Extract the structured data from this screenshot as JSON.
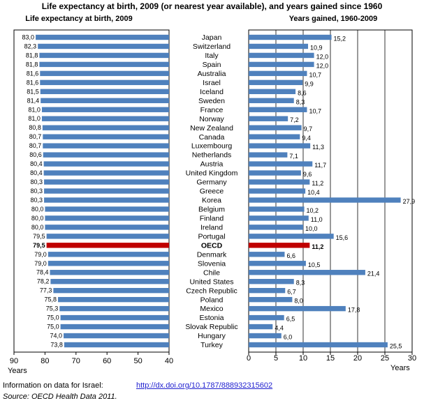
{
  "colors": {
    "bar": "#4f81bd",
    "highlight": "#c00000",
    "grid": "#000000"
  },
  "chart_data": {
    "type": "bar",
    "title": "Life expectancy at birth, 2009 (or nearest year available), and years gained since 1960",
    "categories": [
      "Japan",
      "Switzerland",
      "Italy",
      "Spain",
      "Australia",
      "Israel",
      "Iceland",
      "Sweden",
      "France",
      "Norway",
      "New Zealand",
      "Canada",
      "Luxembourg",
      "Netherlands",
      "Austria",
      "United Kingdom",
      "Germany",
      "Greece",
      "Korea",
      "Belgium",
      "Finland",
      "Ireland",
      "Portugal",
      "OECD",
      "Denmark",
      "Slovenia",
      "Chile",
      "United States",
      "Czech Republic",
      "Poland",
      "Mexico",
      "Estonia",
      "Slovak Republic",
      "Hungary",
      "Turkey"
    ],
    "highlight_category": "OECD",
    "panels": [
      {
        "title": "Life expectancy at birth, 2009",
        "xlabel": "Years",
        "xlim": [
          90,
          40
        ],
        "ticks": [
          90,
          80,
          70,
          60,
          50,
          40
        ],
        "tick_labels": [
          "90",
          "80",
          "70",
          "60",
          "50",
          "40"
        ],
        "values": [
          83.0,
          82.3,
          81.8,
          81.8,
          81.6,
          81.6,
          81.5,
          81.4,
          81.0,
          81.0,
          80.8,
          80.7,
          80.7,
          80.6,
          80.4,
          80.4,
          80.3,
          80.3,
          80.3,
          80.0,
          80.0,
          80.0,
          79.5,
          79.5,
          79.0,
          79.0,
          78.4,
          78.2,
          77.3,
          75.8,
          75.3,
          75.0,
          75.0,
          74.0,
          73.8
        ],
        "value_labels": [
          "83,0",
          "82,3",
          "81,8",
          "81,8",
          "81,6",
          "81,6",
          "81,5",
          "81,4",
          "81,0",
          "81,0",
          "80,8",
          "80,7",
          "80,7",
          "80,6",
          "80,4",
          "80,4",
          "80,3",
          "80,3",
          "80,3",
          "80,0",
          "80,0",
          "80,0",
          "79,5",
          "79,5",
          "79,0",
          "79,0",
          "78,4",
          "78,2",
          "77,3",
          "75,8",
          "75,3",
          "75,0",
          "75,0",
          "74,0",
          "73,8"
        ]
      },
      {
        "title": "Years gained, 1960-2009",
        "xlabel": "Years",
        "xlim": [
          0,
          30
        ],
        "ticks": [
          0,
          5,
          10,
          15,
          20,
          25,
          30
        ],
        "tick_labels": [
          "0",
          "5",
          "10",
          "15",
          "20",
          "25",
          "30"
        ],
        "values": [
          15.2,
          10.9,
          12.0,
          12.0,
          10.7,
          9.9,
          8.6,
          8.3,
          10.7,
          7.2,
          9.7,
          9.4,
          11.3,
          7.1,
          11.7,
          9.6,
          11.2,
          10.4,
          27.9,
          10.2,
          11.0,
          10.0,
          15.6,
          11.2,
          6.6,
          10.5,
          21.4,
          8.3,
          6.7,
          8.0,
          17.8,
          6.5,
          4.4,
          6.0,
          25.5
        ],
        "value_labels": [
          "15,2",
          "10,9",
          "12,0",
          "12,0",
          "10,7",
          "9,9",
          "8,6",
          "8,3",
          "10,7",
          "7,2",
          "9,7",
          "9,4",
          "11,3",
          "7,1",
          "11,7",
          "9,6",
          "11,2",
          "10,4",
          "27,9",
          "10,2",
          "11,0",
          "10,0",
          "15,6",
          "11,2",
          "6,6",
          "10,5",
          "21,4",
          "8,3",
          "6,7",
          "8,0",
          "17,8",
          "6,5",
          "4,4",
          "6,0",
          "25,5"
        ]
      }
    ]
  },
  "footer": {
    "info_label": "Information on data for Israel:",
    "link_text": "http://dx.doi.org/10.1787/888932315602",
    "source": "Source:  OECD Health Data 2011."
  }
}
